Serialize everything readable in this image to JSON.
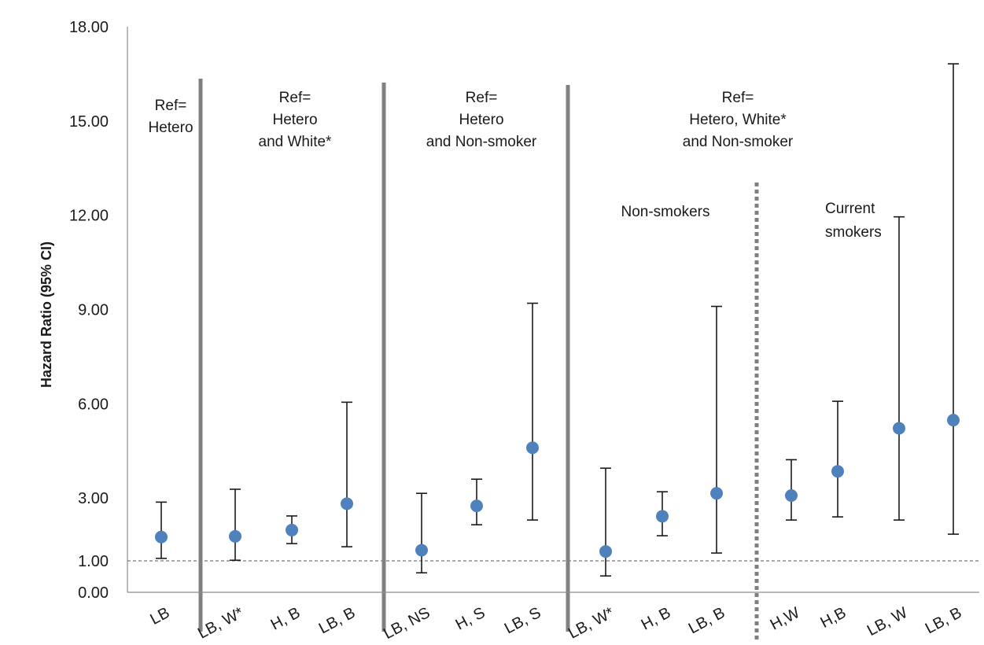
{
  "chart_data": {
    "type": "scatter",
    "title": "",
    "xlabel": "",
    "ylabel": "Hazard Ratio (95% CI)",
    "ylim": [
      0,
      18
    ],
    "yticks": [
      {
        "value": 0,
        "label": "0.00"
      },
      {
        "value": 1,
        "label": "1.00"
      },
      {
        "value": 3,
        "label": "3.00"
      },
      {
        "value": 6,
        "label": "6.00"
      },
      {
        "value": 9,
        "label": "9.00"
      },
      {
        "value": 12,
        "label": "12.00"
      },
      {
        "value": 15,
        "label": "15.00"
      },
      {
        "value": 18,
        "label": "18.00"
      }
    ],
    "reference_line": 1,
    "grid": false,
    "point_color": "#4f81bd",
    "divider_color": "#808080",
    "categories": [
      "LB",
      "LB, W*",
      "H, B",
      "LB, B",
      "LB, NS",
      "H, S",
      "LB, S",
      "LB, W*",
      "H, B",
      "LB, B",
      "H,W",
      "H,B",
      "LB, W",
      "LB, B"
    ],
    "series": [
      {
        "values": [
          1.76,
          1.78,
          1.98,
          2.82,
          1.34,
          2.75,
          4.6,
          1.3,
          2.42,
          3.15,
          3.08,
          3.85,
          5.22,
          5.48
        ],
        "ci_lower": [
          1.08,
          1.02,
          1.55,
          1.45,
          0.62,
          2.15,
          2.3,
          0.52,
          1.8,
          1.25,
          2.3,
          2.4,
          2.3,
          1.85
        ],
        "ci_upper": [
          2.87,
          3.28,
          2.43,
          6.05,
          3.15,
          3.6,
          9.2,
          3.95,
          3.2,
          9.1,
          4.22,
          6.08,
          11.95,
          16.82
        ]
      }
    ],
    "groups": [
      {
        "label_lines": [
          "Ref=",
          "Hetero"
        ]
      },
      {
        "label_lines": [
          "Ref=",
          "Hetero",
          "and White*"
        ]
      },
      {
        "label_lines": [
          "Ref=",
          "Hetero",
          "and Non-smoker"
        ]
      },
      {
        "label_lines": [
          "Ref=",
          "Hetero,  White*",
          "and Non-smoker"
        ]
      }
    ],
    "subgroups": [
      {
        "label_lines": [
          "Non-smokers"
        ]
      },
      {
        "label_lines": [
          "Current",
          "smokers"
        ]
      }
    ]
  }
}
